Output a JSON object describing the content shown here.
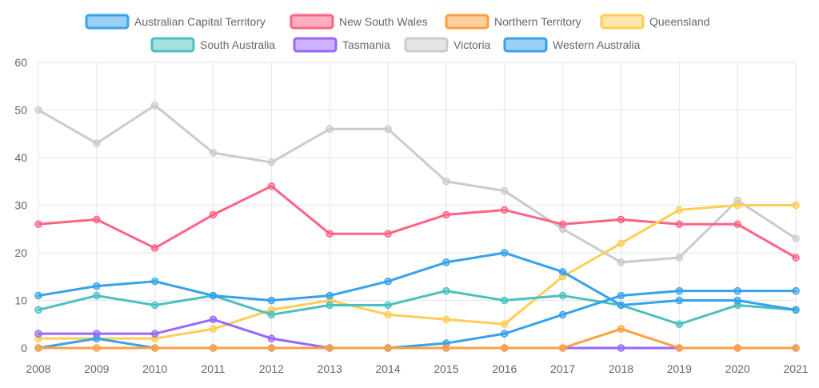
{
  "chart_data": {
    "type": "line",
    "title": "",
    "xlabel": "",
    "ylabel": "",
    "ylim": [
      0,
      60
    ],
    "yticks": [
      0,
      10,
      20,
      30,
      40,
      50,
      60
    ],
    "grid": true,
    "legend_position": "top",
    "x": [
      "2008",
      "2009",
      "2010",
      "2011",
      "2012",
      "2013",
      "2014",
      "2015",
      "2016",
      "2017",
      "2018",
      "2019",
      "2020",
      "2021"
    ],
    "series": [
      {
        "name": "Australian Capital Territory",
        "color": "#36a2eb",
        "values": [
          0,
          2,
          0,
          0,
          0,
          0,
          0,
          1,
          3,
          7,
          11,
          12,
          12,
          12
        ]
      },
      {
        "name": "New South Wales",
        "color": "#ff6384",
        "values": [
          26,
          27,
          21,
          28,
          34,
          24,
          24,
          28,
          29,
          26,
          27,
          26,
          26,
          19
        ]
      },
      {
        "name": "Northern Territory",
        "color": "#ff9f40",
        "values": [
          0,
          0,
          0,
          0,
          0,
          0,
          0,
          0,
          0,
          0,
          4,
          0,
          0,
          0
        ]
      },
      {
        "name": "Queensland",
        "color": "#ffcd56",
        "values": [
          2,
          2,
          2,
          4,
          8,
          10,
          7,
          6,
          5,
          15,
          22,
          29,
          30,
          30
        ]
      },
      {
        "name": "South Australia",
        "color": "#4bc0c0",
        "values": [
          8,
          11,
          9,
          11,
          7,
          9,
          9,
          12,
          10,
          11,
          9,
          5,
          9,
          8
        ]
      },
      {
        "name": "Tasmania",
        "color": "#9966ff",
        "values": [
          3,
          3,
          3,
          6,
          2,
          0,
          0,
          0,
          0,
          0,
          0,
          0,
          0,
          0
        ]
      },
      {
        "name": "Victoria",
        "color": "#c9cbcf",
        "values": [
          50,
          43,
          51,
          41,
          39,
          46,
          46,
          35,
          33,
          25,
          18,
          19,
          31,
          23
        ]
      },
      {
        "name": "Western Australia",
        "color": "#36a2eb",
        "values": [
          11,
          13,
          14,
          11,
          10,
          11,
          14,
          18,
          20,
          16,
          9,
          10,
          10,
          8
        ]
      }
    ]
  }
}
